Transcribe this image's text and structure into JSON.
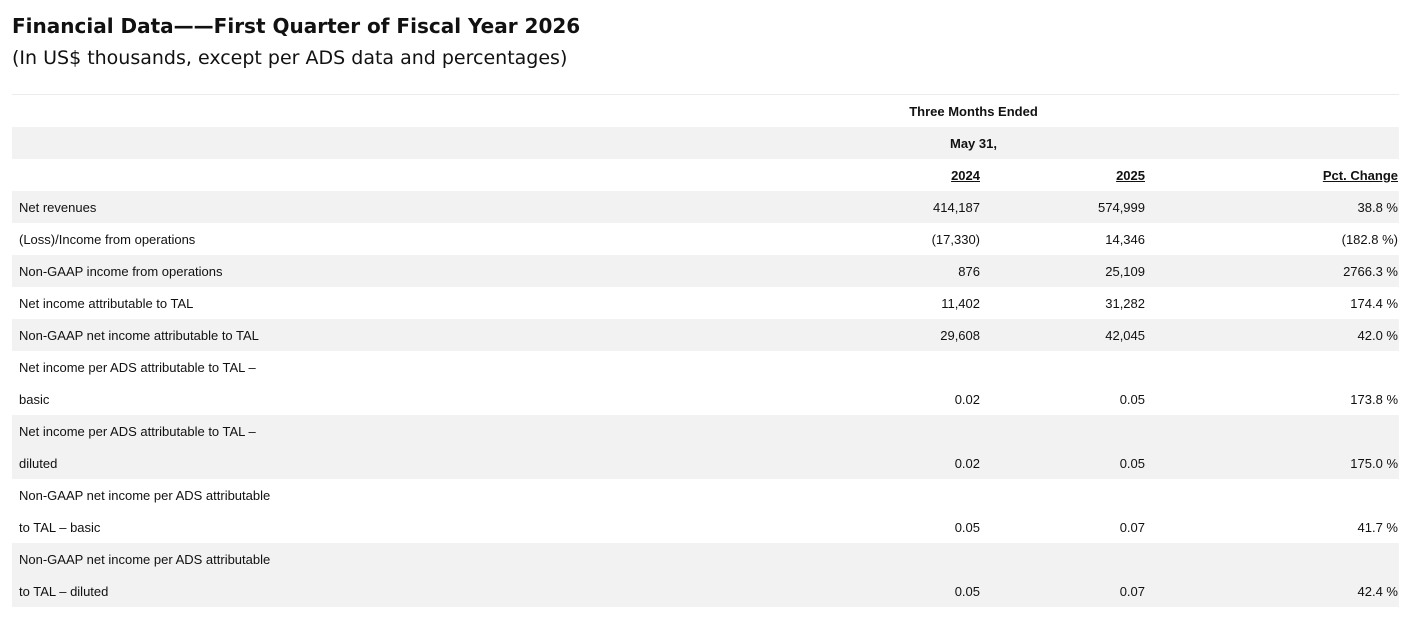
{
  "title": "Financial Data——First Quarter of Fiscal Year 2026",
  "subtitle": "(In US$ thousands, except per ADS data and percentages)",
  "table": {
    "header_line1": "Three Months Ended",
    "header_line2": "May 31,",
    "col_2024": "2024",
    "col_2025": "2025",
    "col_pct": "Pct. Change",
    "rows": [
      {
        "label": "Net revenues",
        "v2024": "414,187",
        "v2025": "574,999",
        "pct": "38.8 %"
      },
      {
        "label": "(Loss)/Income from operations",
        "v2024": "(17,330)",
        "v2025": "14,346",
        "pct": "(182.8 %)"
      },
      {
        "label": "Non-GAAP income from operations",
        "v2024": "876",
        "v2025": "25,109",
        "pct": "2766.3 %"
      },
      {
        "label": "Net income attributable to TAL",
        "v2024": "11,402",
        "v2025": "31,282",
        "pct": "174.4 %"
      },
      {
        "label": "Non-GAAP net income attributable to TAL",
        "v2024": "29,608",
        "v2025": "42,045",
        "pct": "42.0 %"
      },
      {
        "label_line1": "Net income per ADS attributable to TAL –",
        "label_line2": "basic",
        "v2024": "0.02",
        "v2025": "0.05",
        "pct": "173.8 %"
      },
      {
        "label_line1": "Net income per ADS attributable to TAL –",
        "label_line2": "diluted",
        "v2024": "0.02",
        "v2025": "0.05",
        "pct": "175.0 %"
      },
      {
        "label_line1": "Non-GAAP net income per ADS attributable",
        "label_line2": "to TAL – basic",
        "v2024": "0.05",
        "v2025": "0.07",
        "pct": "41.7 %"
      },
      {
        "label_line1": "Non-GAAP net income per ADS attributable",
        "label_line2": "to TAL – diluted",
        "v2024": "0.05",
        "v2025": "0.07",
        "pct": "42.4 %"
      }
    ]
  }
}
